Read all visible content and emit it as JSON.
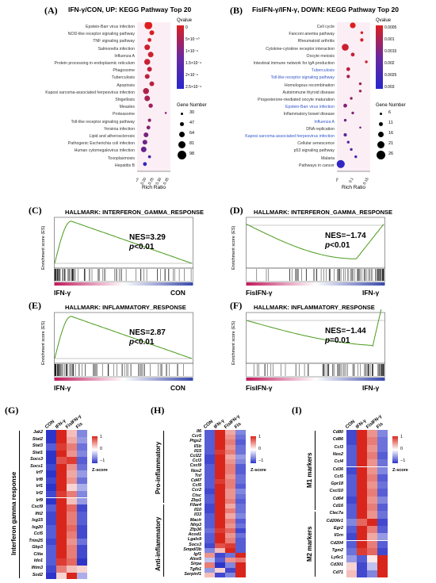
{
  "panels": {
    "A": {
      "label": "(A)",
      "title": "IFN-γ/CON, UP: KEGG Pathway Top 20",
      "terms": [
        "Epstein-Barr virus infection",
        "NOD-like receptor signaling pathway",
        "TNF signaling pathway",
        "Salmonella infection",
        "Influenza A",
        "Protein processing in endoplasmic reticulum",
        "Phagosome",
        "Tuberculosis",
        "Apoptosis",
        "Kaposi sarcoma-associated herpesvirus infection",
        "Shigellosis",
        "Measles",
        "Proteasome",
        "Toll-like receptor signaling pathway",
        "Yersinia infection",
        "Lipid and atherosclerosis",
        "Pathogenic Escherichia coli infection",
        "Human cytomegalovirus infection",
        "Toxoplasmosis",
        "Hepatitis B"
      ],
      "rich_ratio": [
        0.21,
        0.24,
        0.22,
        0.2,
        0.23,
        0.2,
        0.22,
        0.2,
        0.24,
        0.19,
        0.2,
        0.23,
        0.36,
        0.22,
        0.21,
        0.19,
        0.18,
        0.17,
        0.22,
        0.18
      ],
      "qvalue_rank": [
        0.0,
        0.02,
        0.05,
        0.08,
        0.1,
        0.12,
        0.15,
        0.18,
        0.2,
        0.25,
        0.3,
        0.35,
        0.5,
        0.45,
        0.5,
        0.55,
        0.6,
        0.65,
        0.8,
        0.95
      ],
      "gene_number": [
        95,
        60,
        50,
        70,
        70,
        75,
        60,
        60,
        60,
        75,
        70,
        55,
        30,
        45,
        50,
        60,
        60,
        70,
        40,
        50
      ],
      "xlabel": "Rich Ratio",
      "xticks": [
        "0.15",
        "0.20",
        "0.25",
        "0.30",
        "0.35"
      ],
      "qvalue_title": "Qvalue",
      "qvalue_ticks": [
        "0",
        "5×10⁻¹⁰",
        "1×10⁻⁹",
        "1.5×10⁻⁹",
        "2×10⁻⁹",
        "2.5×10⁻⁹"
      ],
      "gene_title": "Gene Number",
      "gene_ticks": [
        "30",
        "47",
        "64",
        "81",
        "98"
      ]
    },
    "B": {
      "label": "(B)",
      "title": "FisIFN-γ/IFN-γ, DOWN: KEGG Pathway Top 20",
      "terms": [
        "Cell cycle",
        "Fanconi anemia pathway",
        "Rheumatoid arthritis",
        "Cytokine-cytokine receptor interaction",
        "Oocyte meiosis",
        "Intestinal immune network for IgA production",
        "Tuberculosis",
        "Toll-like receptor signaling pathway",
        "Homologous recombination",
        "Autoimmune thyroid disease",
        "Progesterone-mediated oocyte maturation",
        "Epstein-Barr virus infection",
        "Inflammatory bowel disease",
        "Influenza A",
        "DNA replication",
        "Kaposi sarcoma-associated herpesvirus infection",
        "Cellular senescence",
        "p53 signaling pathway",
        "Malaria",
        "Pathways in cancer"
      ],
      "term_colors": [
        "#333",
        "#333",
        "#333",
        "#333",
        "#333",
        "#333",
        "#3355cc",
        "#3355cc",
        "#333",
        "#333",
        "#333",
        "#3355cc",
        "#333",
        "#3355cc",
        "#333",
        "#3355cc",
        "#333",
        "#333",
        "#333",
        "#333"
      ],
      "rich_ratio": [
        0.1,
        0.16,
        0.16,
        0.05,
        0.1,
        0.19,
        0.07,
        0.07,
        0.15,
        0.15,
        0.09,
        0.05,
        0.1,
        0.05,
        0.15,
        0.05,
        0.07,
        0.09,
        0.12,
        0.02
      ],
      "qvalue_rank": [
        0.0,
        0.0,
        0.05,
        0.1,
        0.15,
        0.1,
        0.2,
        0.3,
        0.35,
        0.35,
        0.4,
        0.5,
        0.5,
        0.6,
        0.6,
        0.7,
        0.75,
        0.75,
        0.8,
        0.95
      ],
      "gene_number": [
        18,
        8,
        10,
        22,
        12,
        8,
        12,
        10,
        8,
        8,
        8,
        12,
        8,
        8,
        6,
        10,
        8,
        8,
        8,
        26
      ],
      "xlabel": "Rich Ratio",
      "xticks": [
        "0.05",
        "0.1",
        "0.15"
      ],
      "qvalue_title": "Qvalue",
      "qvalue_ticks": [
        "0.0005",
        "0.001",
        "0.0015",
        "0.002",
        "0.0025",
        "0.003"
      ],
      "gene_title": "Gene Number",
      "gene_ticks": [
        "6",
        "11",
        "16",
        "21",
        "26"
      ]
    },
    "C": {
      "label": "(C)",
      "title": "HALLMARK: INTERFERON_GAMMA_RESPONSE",
      "nes": "NES=3.29",
      "p_prefix": "p",
      "p_rest": "<0.01",
      "left": "IFN-γ",
      "right": "CON",
      "ylabel": "Enrichment score (ES)",
      "shape": "up"
    },
    "D": {
      "label": "(D)",
      "title": "HALLMARK: INTERFERON_GAMMA_RESPONSE",
      "nes": "NES=−1.74",
      "p_prefix": "p",
      "p_rest": "<0.01",
      "left": "FisIFN-γ",
      "right": "IFN-γ",
      "ylabel": "Enrichment score (ES)",
      "shape": "down"
    },
    "E": {
      "label": "(E)",
      "title": "HALLMARK: INFLAMMATORY_RESPONSE",
      "nes": "NES=2.87",
      "p_prefix": "p",
      "p_rest": "<0.01",
      "left": "IFN-γ",
      "right": "CON",
      "ylabel": "Enrichment score (ES)",
      "shape": "up"
    },
    "F": {
      "label": "(F)",
      "title": "HALLMARK: INFLAMMATORY_RESPONSE",
      "nes": "NES=−1.44",
      "p_prefix": "p",
      "p_rest": "=0.01",
      "left": "FisIFN-γ",
      "right": "IFN-γ",
      "ylabel": "Enrichment score (ES)",
      "shape": "down"
    },
    "G": {
      "label": "(G)",
      "columns": [
        "CON",
        "IFN-γ",
        "FisIFN-γ",
        "Fis"
      ],
      "side_label": "Interferon gamma response",
      "genes": [
        "Jak2",
        "Stat2",
        "Stat3",
        "Stat1",
        "Socs3",
        "Socs1",
        "Irf7",
        "Irf8",
        "Irf1",
        "Irf2",
        "Irf9",
        "Cxcl9",
        "Ifit2",
        "Isg15",
        "Isg20",
        "Ccl5",
        "Trim25",
        "Gbp3",
        "Ciita",
        "Ido1",
        "Ifitm3",
        "Sod2"
      ],
      "z": [
        [
          -1,
          1,
          0.3,
          -0.6
        ],
        [
          -1,
          1,
          0.4,
          -0.5
        ],
        [
          -0.8,
          0.9,
          0.6,
          -0.7
        ],
        [
          -1,
          1,
          0.5,
          -0.6
        ],
        [
          -1,
          0.8,
          0.9,
          -0.8
        ],
        [
          -0.9,
          1,
          0.5,
          -0.7
        ],
        [
          -1,
          1,
          0.4,
          -0.5
        ],
        [
          -0.9,
          1,
          0.5,
          -0.7
        ],
        [
          -1,
          1,
          0.2,
          -0.4
        ],
        [
          -0.9,
          0.9,
          0.6,
          -0.6
        ],
        [
          -1,
          1,
          0.3,
          -0.5
        ],
        [
          -0.8,
          1,
          0.7,
          -0.9
        ],
        [
          -0.9,
          1,
          0.6,
          -0.8
        ],
        [
          -0.9,
          1,
          0.6,
          -0.8
        ],
        [
          -0.8,
          1,
          0.7,
          -0.9
        ],
        [
          -0.8,
          1,
          0.6,
          -0.9
        ],
        [
          -0.9,
          1,
          0.5,
          -0.7
        ],
        [
          -0.8,
          1,
          0.6,
          -0.9
        ],
        [
          -0.8,
          1,
          0.6,
          -0.9
        ],
        [
          -0.8,
          0.9,
          0.7,
          -1
        ],
        [
          -0.9,
          0.6,
          0.3,
          0.2
        ],
        [
          -1,
          0.2,
          1.2,
          -0.4
        ]
      ],
      "legend_title": "Z-score",
      "legend_ticks": [
        "1",
        "0",
        "−1"
      ]
    },
    "H": {
      "label": "(H)",
      "columns": [
        "CON",
        "IFN-γ",
        "FisIFN-γ",
        "Fis"
      ],
      "group1": "Pro-inflammatory",
      "group2": "Anti-inflammatory",
      "genes": [
        "Il6",
        "Ccr5",
        "Ptgs2",
        "Il1b",
        "Il15",
        "Ccl22",
        "Ccl3",
        "Cxcl9",
        "Nos2",
        "Tnf",
        "Cd47",
        "Ccl5",
        "Ccr2",
        "Ctsc",
        "Zbp1",
        "Fllar4",
        "Il10",
        "Il33",
        "Macir",
        "Nlrp3",
        "Zfp36",
        "Acod1",
        "Lgals9",
        "Socs3",
        "Smpdl3b",
        "Igf1",
        "Alox5",
        "Sirpa",
        "Tgfb1",
        "Serpinf1"
      ],
      "z": [
        [
          -0.8,
          1,
          0.4,
          -0.6
        ],
        [
          -0.8,
          1,
          0.5,
          -0.7
        ],
        [
          -0.8,
          1,
          0.6,
          -0.8
        ],
        [
          -0.8,
          1,
          0.5,
          -0.7
        ],
        [
          -0.8,
          0.9,
          0.6,
          -0.7
        ],
        [
          -0.9,
          1,
          0.4,
          -0.5
        ],
        [
          -0.9,
          1,
          0.5,
          -0.6
        ],
        [
          -0.8,
          1,
          0.6,
          -0.8
        ],
        [
          -0.8,
          1,
          0.6,
          -0.8
        ],
        [
          -0.8,
          1,
          0.5,
          -0.7
        ],
        [
          -0.8,
          0.9,
          0.6,
          -0.7
        ],
        [
          -0.8,
          1,
          0.6,
          -0.8
        ],
        [
          -0.9,
          1,
          0.5,
          -0.6
        ],
        [
          -0.8,
          1,
          0.5,
          -0.7
        ],
        [
          -0.8,
          1,
          0.6,
          -0.8
        ],
        [
          -0.9,
          1.2,
          0.4,
          -0.7
        ],
        [
          -0.9,
          1,
          0.6,
          -0.7
        ],
        [
          -0.8,
          1,
          0.4,
          -0.6
        ],
        [
          -0.8,
          1,
          0.6,
          -0.8
        ],
        [
          -0.8,
          1,
          0.5,
          -0.7
        ],
        [
          -0.7,
          0.9,
          0.7,
          -0.9
        ],
        [
          -0.8,
          1,
          0.5,
          -0.7
        ],
        [
          -0.8,
          1,
          0.6,
          -0.8
        ],
        [
          -0.9,
          0.8,
          0.9,
          -0.8
        ],
        [
          -0.6,
          0.3,
          1.1,
          -0.8
        ],
        [
          0.5,
          -0.9,
          -0.7,
          1.1
        ],
        [
          -0.3,
          -0.8,
          0.5,
          0.6
        ],
        [
          0.6,
          -1,
          -0.6,
          1
        ],
        [
          -0.5,
          0.2,
          -0.9,
          1.2
        ],
        [
          0.3,
          -0.9,
          -0.6,
          1.2
        ]
      ],
      "legend_title": "Z-score",
      "legend_ticks": [
        "1",
        "0",
        "−1"
      ]
    },
    "I": {
      "label": "(I)",
      "columns": [
        "CON",
        "IFN-γ",
        "FisIFN-γ",
        "Fis"
      ],
      "group1": "M1 markers",
      "group2": "M2 markers",
      "genes": [
        "Cd80",
        "Cd86",
        "Ccl3",
        "Nos2",
        "Ccl4",
        "Cd36",
        "Ccl5",
        "Gpr18",
        "Cxcl10",
        "Cd64",
        "Cd16",
        "Clec7a",
        "Cd206r1",
        "Egr2",
        "Il1rn",
        "Cd204",
        "Tgm2",
        "Ly6c1",
        "Cd301",
        "Cd71"
      ],
      "z": [
        [
          -0.9,
          1,
          0.5,
          -0.6
        ],
        [
          -0.9,
          1,
          0.6,
          -0.7
        ],
        [
          -0.8,
          1,
          0.5,
          -0.7
        ],
        [
          -0.8,
          1,
          0.6,
          -0.8
        ],
        [
          -0.8,
          1,
          0.5,
          -0.7
        ],
        [
          -0.9,
          1,
          0.5,
          -0.6
        ],
        [
          -0.8,
          1,
          0.6,
          -0.8
        ],
        [
          -0.8,
          1,
          0.5,
          -0.7
        ],
        [
          -0.8,
          1,
          0.6,
          -0.8
        ],
        [
          -0.9,
          1,
          0.5,
          -0.6
        ],
        [
          -0.8,
          1,
          0.6,
          -0.8
        ],
        [
          -0.8,
          1,
          0.5,
          -0.7
        ],
        [
          -0.6,
          0.7,
          1,
          -0.9
        ],
        [
          -0.8,
          1,
          0.6,
          -0.8
        ],
        [
          -0.9,
          1,
          0.4,
          -0.5
        ],
        [
          -0.8,
          1,
          0.6,
          -0.8
        ],
        [
          -0.7,
          0.9,
          0.7,
          -0.9
        ],
        [
          -0.5,
          -0.8,
          0.1,
          1.2
        ],
        [
          0.2,
          -0.9,
          -0.3,
          1.1
        ],
        [
          0.3,
          -0.9,
          -0.6,
          1.2
        ]
      ],
      "legend_title": "Z-score",
      "legend_ticks": [
        "1",
        "0",
        "−1"
      ]
    }
  },
  "colors": {
    "red": "#dd1f1f",
    "white": "#ffffff",
    "blue": "#2727cc",
    "es_line": "#4a9a1a",
    "heat_red": "#d9261c",
    "heat_blue": "#2d35c9"
  }
}
